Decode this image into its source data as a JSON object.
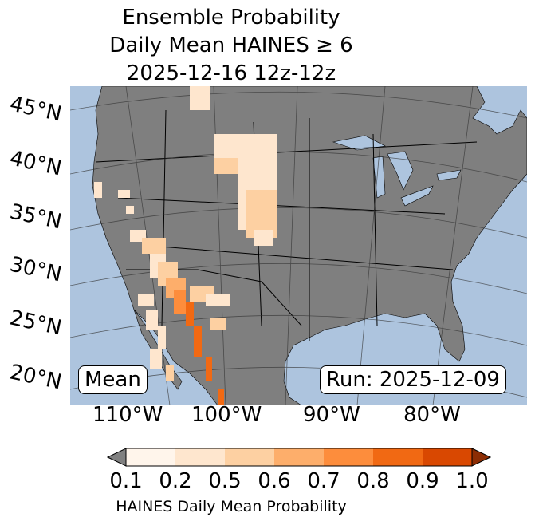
{
  "title": {
    "line1": "Ensemble Probability",
    "line2": "Daily Mean HAINES ≥ 6",
    "line3": "2025-12-16 12z-12z"
  },
  "lat_labels": [
    "45°N",
    "40°N",
    "35°N",
    "30°N",
    "25°N",
    "20°N"
  ],
  "lon_labels": [
    "110°W",
    "100°W",
    "90°W",
    "80°W"
  ],
  "mean_label": "Mean",
  "run_label": "Run: 2025-12-09",
  "colorbar": {
    "ticks": [
      "0.1",
      "0.2",
      "0.5",
      "0.6",
      "0.7",
      "0.8",
      "0.9",
      "1.0"
    ],
    "colors": [
      "#fff5eb",
      "#fee6ce",
      "#fdd0a2",
      "#fdae6b",
      "#fd8d3c",
      "#f16913",
      "#d94801"
    ],
    "under_color": "#808080",
    "over_color": "#8c2d04",
    "label": "HAINES Daily Mean Probability"
  },
  "colors": {
    "ocean": "#adc4de",
    "land": "#7f7f7f"
  }
}
